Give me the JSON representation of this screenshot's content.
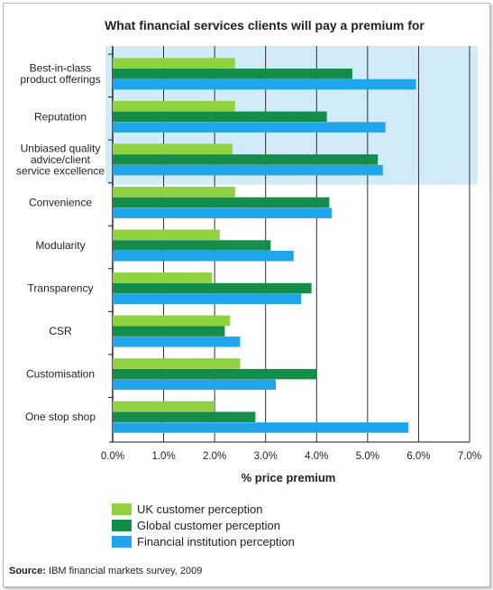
{
  "colors": {
    "uk": "#8fd13f",
    "global": "#148d4a",
    "fi": "#1fa6ea",
    "highlight": "#d2ebf9"
  },
  "chart_data": {
    "type": "bar",
    "orientation": "horizontal",
    "title": "What financial services clients will pay a premium for",
    "xlabel": "% price premium",
    "xlim": [
      0,
      7
    ],
    "xticks": [
      "0.0%",
      "1.0%",
      "2.0%",
      "3.0%",
      "4.0%",
      "5.0%",
      "6.0%",
      "7.0%"
    ],
    "grid": "vertical",
    "highlighted_categories": 3,
    "categories": [
      [
        "Best-in-class",
        "product offerings"
      ],
      [
        "Reputation"
      ],
      [
        "Unbiased quality",
        "advice/client",
        "service excellence"
      ],
      [
        "Convenience"
      ],
      [
        "Modularity"
      ],
      [
        "Transparency"
      ],
      [
        "CSR"
      ],
      [
        "Customisation"
      ],
      [
        "One stop shop"
      ]
    ],
    "series": [
      {
        "name": "UK customer perception",
        "color_key": "uk",
        "values": [
          2.4,
          2.4,
          2.35,
          2.4,
          2.1,
          1.95,
          2.3,
          2.5,
          2.0
        ]
      },
      {
        "name": "Global customer perception",
        "color_key": "global",
        "values": [
          4.7,
          4.2,
          5.2,
          4.25,
          3.1,
          3.9,
          2.2,
          4.0,
          2.8
        ]
      },
      {
        "name": "Financial institution perception",
        "color_key": "fi",
        "values": [
          5.95,
          5.35,
          5.3,
          4.3,
          3.55,
          3.7,
          2.5,
          3.2,
          5.8
        ]
      }
    ]
  },
  "legend": {
    "items": [
      "UK customer perception",
      "Global customer perception",
      "Financial institution perception"
    ]
  },
  "source": {
    "label": "Source:",
    "text": " IBM financial markets survey, 2009"
  }
}
